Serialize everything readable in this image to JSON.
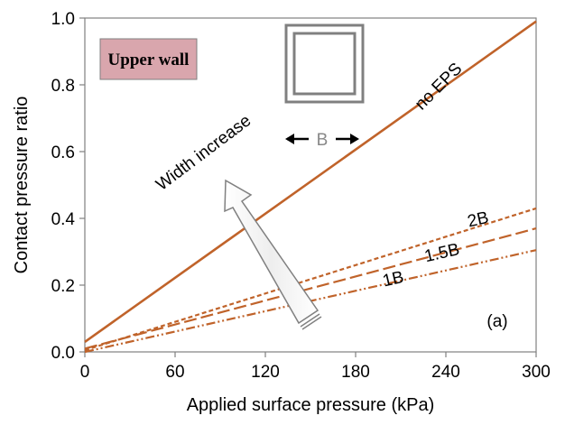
{
  "chart_data": {
    "type": "line",
    "title": "",
    "xlabel": "Applied surface pressure (kPa)",
    "ylabel": "Contact pressure ratio",
    "xlim": [
      0,
      300
    ],
    "ylim": [
      0,
      1.0
    ],
    "x_ticks": [
      "0",
      "60",
      "120",
      "180",
      "240",
      "300"
    ],
    "y_ticks": [
      "0.0",
      "0.2",
      "0.4",
      "0.6",
      "0.8",
      "1.0"
    ],
    "grid": false,
    "series": [
      {
        "name": "no EPS",
        "style": "solid",
        "color": "#C0632A",
        "x": [
          0,
          300
        ],
        "y": [
          0.03,
          0.99
        ]
      },
      {
        "name": "2B",
        "style": "short-dash",
        "color": "#C0632A",
        "x": [
          0,
          300
        ],
        "y": [
          0.005,
          0.43
        ]
      },
      {
        "name": "1.5B",
        "style": "long-dash",
        "color": "#C0632A",
        "x": [
          0,
          300
        ],
        "y": [
          0.01,
          0.37
        ]
      },
      {
        "name": "1B",
        "style": "dash-dot-dot",
        "color": "#C0632A",
        "x": [
          0,
          300
        ],
        "y": [
          0.0,
          0.305
        ]
      }
    ],
    "annotations": {
      "inset_title": "Upper wall",
      "width_label": "B",
      "arrow_label": "Width increase",
      "panel_tag": "(a)"
    }
  }
}
